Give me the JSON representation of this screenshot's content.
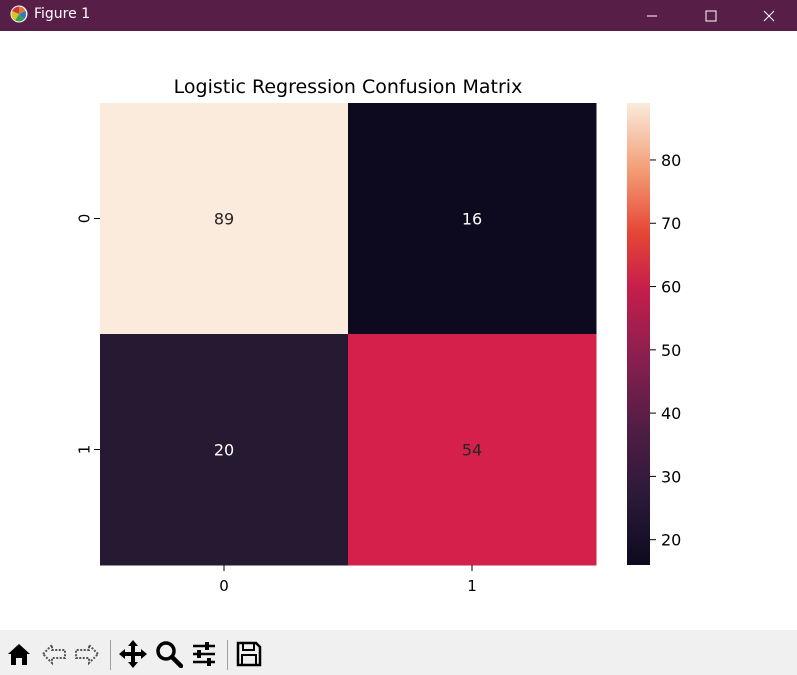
{
  "window": {
    "title": "Figure 1",
    "controls": [
      "minimize",
      "maximize",
      "close"
    ]
  },
  "chart_data": {
    "type": "heatmap",
    "title": "Logistic Regression Confusion Matrix",
    "rows": [
      "0",
      "1"
    ],
    "columns": [
      "0",
      "1"
    ],
    "values": [
      [
        89,
        16
      ],
      [
        20,
        54
      ]
    ],
    "cell_colors": [
      [
        "#faebdd",
        "#0d0a1f"
      ],
      [
        "#261a33",
        "#d4204b"
      ]
    ],
    "colorbar": {
      "min": 16,
      "max": 89,
      "ticks": [
        "20",
        "30",
        "40",
        "50",
        "60",
        "70",
        "80"
      ],
      "colormap": "rocket"
    }
  },
  "toolbar": {
    "buttons": [
      "home-icon",
      "back-icon",
      "forward-icon",
      "pan-icon",
      "zoom-icon",
      "configure-subplots-icon",
      "save-icon"
    ]
  }
}
